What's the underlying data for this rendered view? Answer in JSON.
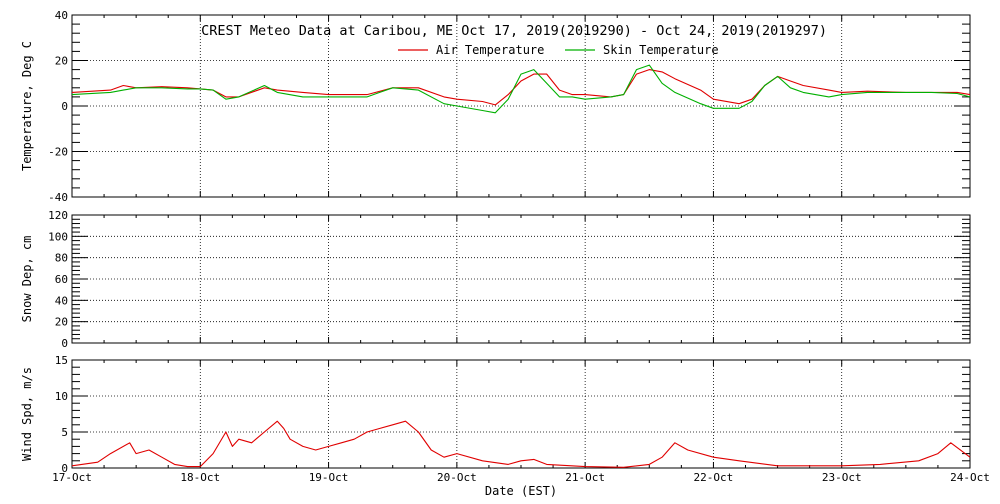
{
  "chart_data": [
    {
      "type": "line",
      "title": "CREST Meteo Data at Caribou, ME   Oct 17, 2019(2019290) - Oct 24, 2019(2019297)",
      "xlabel": "",
      "ylabel": "Temperature, Deg C",
      "ylim": [
        -40,
        40
      ],
      "yticks": [
        -40,
        -20,
        0,
        20,
        40
      ],
      "xlim": [
        0,
        7
      ],
      "grid": true,
      "legend": "top-right",
      "series": [
        {
          "name": "Air Temperature",
          "color": "#e00000",
          "x": [
            0,
            0.3,
            0.4,
            0.5,
            0.7,
            0.9,
            1.0,
            1.1,
            1.2,
            1.3,
            1.5,
            1.6,
            1.8,
            2.0,
            2.3,
            2.5,
            2.7,
            2.9,
            3.0,
            3.2,
            3.3,
            3.4,
            3.5,
            3.6,
            3.7,
            3.8,
            3.9,
            4.0,
            4.2,
            4.3,
            4.4,
            4.5,
            4.6,
            4.7,
            4.9,
            5.0,
            5.2,
            5.3,
            5.4,
            5.5,
            5.6,
            5.7,
            5.9,
            6.0,
            6.2,
            6.5,
            6.7,
            6.9,
            7.0
          ],
          "values": [
            6,
            7,
            9,
            8,
            8.5,
            8,
            7.5,
            7,
            4,
            4,
            8,
            7,
            6,
            5,
            5,
            8,
            8,
            4,
            3,
            2,
            0.5,
            5,
            11,
            14,
            14,
            7,
            5,
            5,
            4,
            5,
            14,
            16,
            15,
            12,
            7,
            3,
            1,
            3,
            9,
            13,
            11,
            9,
            7,
            6,
            6.5,
            6,
            6,
            6,
            5
          ]
        },
        {
          "name": "Skin Temperature",
          "color": "#00b000",
          "x": [
            0,
            0.3,
            0.4,
            0.5,
            0.7,
            0.9,
            1.0,
            1.1,
            1.2,
            1.3,
            1.5,
            1.6,
            1.8,
            2.0,
            2.3,
            2.5,
            2.7,
            2.9,
            3.0,
            3.2,
            3.3,
            3.4,
            3.5,
            3.6,
            3.7,
            3.8,
            3.9,
            4.0,
            4.2,
            4.3,
            4.4,
            4.5,
            4.6,
            4.7,
            4.9,
            5.0,
            5.2,
            5.3,
            5.4,
            5.5,
            5.6,
            5.7,
            5.9,
            6.0,
            6.2,
            6.5,
            6.7,
            6.9,
            7.0
          ],
          "values": [
            5,
            6,
            7,
            8,
            8,
            7.5,
            7.5,
            7,
            3,
            4,
            9,
            6,
            4,
            4,
            4,
            8,
            7,
            1,
            0,
            -2,
            -3,
            3,
            14,
            16,
            10,
            4,
            4,
            3,
            4,
            5,
            16,
            18,
            10,
            6,
            1,
            -1,
            -1,
            2,
            9,
            13,
            8,
            6,
            4,
            5,
            6,
            6,
            6,
            5.5,
            4
          ]
        }
      ]
    },
    {
      "type": "line",
      "title": "",
      "xlabel": "",
      "ylabel": "Snow Dep, cm",
      "ylim": [
        0,
        120
      ],
      "yticks": [
        0,
        20,
        40,
        60,
        80,
        100,
        120
      ],
      "xlim": [
        0,
        7
      ],
      "grid": true,
      "series": []
    },
    {
      "type": "line",
      "title": "",
      "xlabel": "Date (EST)",
      "ylabel": "Wind Spd, m/s",
      "ylim": [
        0,
        15
      ],
      "yticks": [
        0,
        5,
        10,
        15
      ],
      "xlim": [
        0,
        7
      ],
      "xticks": [
        "17-Oct",
        "18-Oct",
        "19-Oct",
        "20-Oct",
        "21-Oct",
        "22-Oct",
        "23-Oct",
        "24-Oct"
      ],
      "grid": true,
      "series": [
        {
          "name": "Wind Speed",
          "color": "#e00000",
          "x": [
            0,
            0.2,
            0.3,
            0.45,
            0.5,
            0.6,
            0.7,
            0.8,
            0.9,
            1.0,
            1.1,
            1.2,
            1.25,
            1.3,
            1.4,
            1.5,
            1.6,
            1.65,
            1.7,
            1.8,
            1.9,
            2.0,
            2.1,
            2.2,
            2.3,
            2.4,
            2.5,
            2.6,
            2.7,
            2.8,
            2.9,
            3.0,
            3.2,
            3.4,
            3.5,
            3.6,
            3.7,
            4.0,
            4.3,
            4.5,
            4.6,
            4.7,
            4.8,
            5.0,
            5.2,
            5.5,
            6.0,
            6.3,
            6.6,
            6.75,
            6.85,
            7.0
          ],
          "values": [
            0.3,
            0.8,
            2,
            3.5,
            2,
            2.5,
            1.5,
            0.5,
            0.2,
            0.2,
            2,
            5,
            3,
            4,
            3.5,
            5,
            6.5,
            5.5,
            4,
            3,
            2.5,
            3,
            3.5,
            4,
            5,
            5.5,
            6,
            6.5,
            5,
            2.5,
            1.5,
            2,
            1,
            0.5,
            1,
            1.2,
            0.5,
            0.2,
            0.1,
            0.5,
            1.5,
            3.5,
            2.5,
            1.5,
            1,
            0.3,
            0.3,
            0.5,
            1,
            2,
            3.5,
            1.5
          ]
        }
      ]
    }
  ]
}
